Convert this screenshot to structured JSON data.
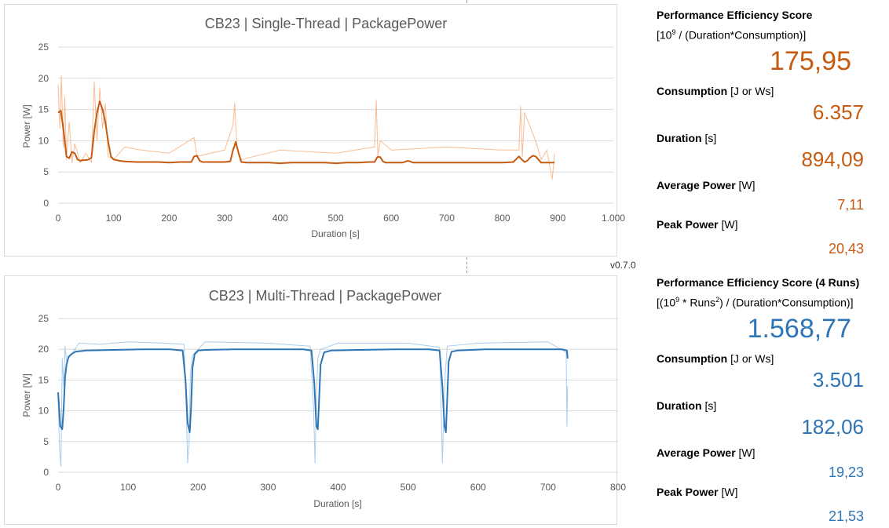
{
  "version": "v0.7.0",
  "colors": {
    "single": "#c55a11",
    "single_light": "#f4b183",
    "multi": "#2e75b6",
    "multi_light": "#9dc3e6"
  },
  "chart_data": [
    {
      "type": "line",
      "title": "CB23 | Single-Thread | PackagePower",
      "xlabel": "Duration [s]",
      "ylabel": "Power [W]",
      "xlim": [
        0,
        1000
      ],
      "ylim": [
        0,
        25
      ],
      "x_ticks": [
        "0",
        "100",
        "200",
        "300",
        "400",
        "500",
        "600",
        "700",
        "800",
        "900",
        "1.000"
      ],
      "y_ticks": [
        "0",
        "5",
        "10",
        "15",
        "20",
        "25"
      ],
      "grid": true,
      "series": [
        {
          "x": [
            0,
            5,
            10,
            15,
            20,
            25,
            30,
            35,
            40,
            45,
            50,
            55,
            60,
            65,
            70,
            75,
            80,
            85,
            90,
            95,
            100,
            110,
            120,
            140,
            160,
            180,
            200,
            220,
            240,
            245,
            250,
            255,
            260,
            280,
            300,
            310,
            315,
            320,
            325,
            330,
            340,
            360,
            380,
            400,
            420,
            440,
            460,
            480,
            500,
            520,
            540,
            560,
            570,
            575,
            580,
            585,
            590,
            600,
            620,
            630,
            640,
            660,
            680,
            700,
            720,
            740,
            760,
            780,
            800,
            820,
            830,
            835,
            840,
            845,
            850,
            855,
            860,
            870,
            880,
            890,
            894
          ],
          "values": [
            14.5,
            14.8,
            11.5,
            7.5,
            7.2,
            8.2,
            8.0,
            7.0,
            6.8,
            6.9,
            6.9,
            7.0,
            7.3,
            11.5,
            14.5,
            16.3,
            15.0,
            13.0,
            10.0,
            7.5,
            7.0,
            6.8,
            6.7,
            6.6,
            6.6,
            6.6,
            6.5,
            6.6,
            6.6,
            7.5,
            7.6,
            6.8,
            6.6,
            6.6,
            6.6,
            6.7,
            8.5,
            9.8,
            8.0,
            6.6,
            6.5,
            6.5,
            6.5,
            6.4,
            6.5,
            6.5,
            6.5,
            6.5,
            6.4,
            6.5,
            6.5,
            6.6,
            6.6,
            7.4,
            7.4,
            6.7,
            6.5,
            6.5,
            6.5,
            6.8,
            6.5,
            6.5,
            6.5,
            6.5,
            6.5,
            6.5,
            6.5,
            6.5,
            6.5,
            6.6,
            7.5,
            7.0,
            6.6,
            6.8,
            7.3,
            7.6,
            7.5,
            6.5,
            6.5,
            6.5,
            6.5
          ]
        },
        {
          "x": [
            0,
            3,
            6,
            9,
            12,
            15,
            20,
            25,
            30,
            40,
            50,
            60,
            65,
            70,
            75,
            80,
            85,
            90,
            100,
            120,
            150,
            200,
            245,
            250,
            300,
            315,
            318,
            322,
            330,
            400,
            500,
            570,
            573,
            576,
            580,
            600,
            700,
            800,
            830,
            833,
            836,
            840,
            860,
            870,
            880,
            890,
            894
          ],
          "values": [
            19.0,
            12.0,
            20.4,
            9.0,
            17.0,
            7.0,
            13.0,
            6.5,
            9.5,
            6.5,
            8.0,
            6.5,
            19.5,
            10.0,
            18.5,
            12.0,
            16.0,
            7.5,
            7.0,
            9.0,
            8.5,
            8.0,
            10.5,
            7.5,
            8.5,
            12.5,
            16.0,
            9.0,
            7.0,
            8.5,
            8.0,
            9.0,
            16.5,
            7.5,
            10.0,
            8.5,
            9.0,
            8.5,
            8.5,
            15.5,
            7.5,
            14.5,
            10.0,
            7.0,
            8.5,
            3.8,
            8.0
          ]
        }
      ]
    },
    {
      "type": "line",
      "title": "CB23 | Multi-Thread | PackagePower",
      "xlabel": "Duration [s]",
      "ylabel": "Power [W]",
      "xlim": [
        0,
        800
      ],
      "ylim": [
        0,
        25
      ],
      "x_ticks": [
        "0",
        "100",
        "200",
        "300",
        "400",
        "500",
        "600",
        "700",
        "800"
      ],
      "y_ticks": [
        "0",
        "5",
        "10",
        "15",
        "20",
        "25"
      ],
      "grid": true,
      "series": [
        {
          "x": [
            0,
            3,
            6,
            8,
            10,
            12,
            15,
            20,
            25,
            40,
            80,
            120,
            160,
            178,
            182,
            185,
            188,
            190,
            192,
            195,
            200,
            210,
            250,
            300,
            350,
            362,
            366,
            369,
            371,
            373,
            375,
            380,
            390,
            430,
            480,
            530,
            545,
            549,
            552,
            554,
            556,
            558,
            562,
            570,
            610,
            660,
            700,
            720,
            727,
            728
          ],
          "values": [
            13.0,
            7.5,
            7.0,
            10.5,
            15.5,
            17.5,
            18.8,
            19.3,
            19.6,
            19.8,
            19.9,
            20.0,
            20.0,
            19.8,
            15.0,
            8.0,
            6.5,
            10.5,
            17.0,
            19.2,
            19.8,
            19.9,
            20.0,
            20.0,
            20.0,
            19.8,
            14.5,
            7.5,
            7.0,
            12.0,
            17.5,
            19.5,
            19.8,
            19.9,
            20.0,
            20.0,
            19.8,
            14.0,
            7.5,
            6.5,
            12.0,
            18.0,
            19.6,
            19.8,
            20.0,
            20.0,
            20.0,
            20.0,
            19.8,
            18.5
          ]
        },
        {
          "x": [
            0,
            2,
            4,
            6,
            8,
            10,
            12,
            30,
            60,
            100,
            150,
            180,
            183,
            185,
            187,
            189,
            192,
            210,
            300,
            360,
            365,
            367,
            369,
            371,
            375,
            400,
            500,
            545,
            547,
            549,
            551,
            553,
            556,
            600,
            700,
            726,
            727,
            728
          ],
          "values": [
            12.0,
            4.0,
            1.0,
            18.5,
            14.0,
            20.5,
            18.0,
            21.0,
            20.8,
            21.2,
            21.0,
            20.8,
            11.0,
            1.5,
            4.5,
            16.0,
            19.0,
            21.2,
            21.0,
            20.5,
            10.5,
            1.5,
            12.0,
            18.5,
            20.0,
            21.0,
            21.0,
            20.3,
            12.0,
            1.5,
            10.0,
            16.0,
            20.5,
            21.0,
            21.2,
            19.5,
            7.5,
            14.0
          ]
        }
      ]
    }
  ],
  "single_thread": {
    "score_title": "Performance Efficiency Score",
    "score_formula_pre": "[10",
    "score_formula_sup": "9",
    "score_formula_post": " / (Duration*Consumption)]",
    "score_value": "175,95",
    "consumption_label": "Consumption",
    "consumption_unit": " [J or Ws]",
    "consumption_value": "6.357",
    "duration_label": "Duration",
    "duration_unit": " [s]",
    "duration_value": "894,09",
    "avg_label": "Average Power",
    "avg_unit": " [W]",
    "avg_value": "7,11",
    "peak_label": "Peak Power",
    "peak_unit": " [W]",
    "peak_value": "20,43"
  },
  "multi_thread": {
    "score_title": "Performance Efficiency Score (4 Runs)",
    "score_formula_pre": "[(10",
    "score_formula_sup": "9",
    "score_formula_mid": " * Runs",
    "score_formula_sup2": "2",
    "score_formula_post": ") / (Duration*Consumption)]",
    "score_value": "1.568,77",
    "consumption_label": "Consumption",
    "consumption_unit": " [J or Ws]",
    "consumption_value": "3.501",
    "duration_label": "Duration",
    "duration_unit": " [s]",
    "duration_value": "182,06",
    "avg_label": "Average Power",
    "avg_unit": " [W]",
    "avg_value": "19,23",
    "peak_label": "Peak Power",
    "peak_unit": " [W]",
    "peak_value": "21,53"
  }
}
